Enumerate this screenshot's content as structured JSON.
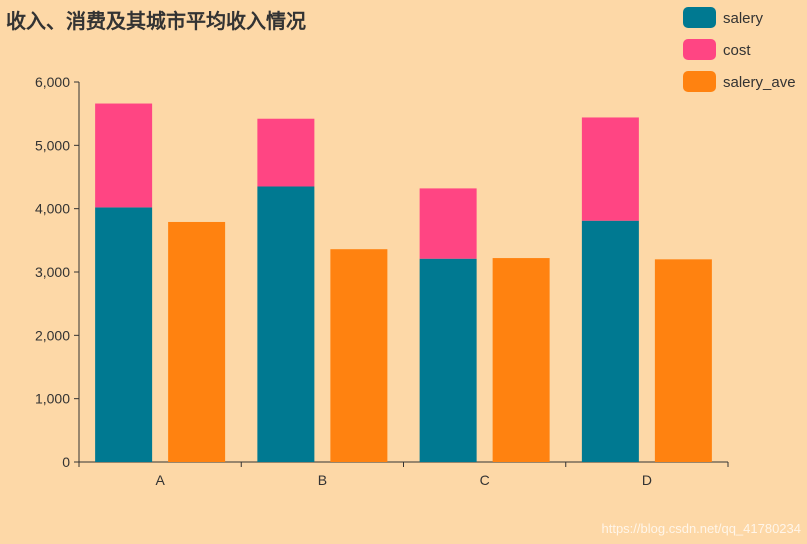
{
  "chart_data": {
    "type": "bar",
    "stacked_groups": true,
    "title": "收入、消费及其城市平均收入情况",
    "categories": [
      "A",
      "B",
      "C",
      "D"
    ],
    "ylim": [
      0,
      6000
    ],
    "yticks": [
      0,
      1000,
      2000,
      3000,
      4000,
      5000,
      6000
    ],
    "ytick_labels": [
      "0",
      "1,000",
      "2,000",
      "3,000",
      "4,000",
      "5,000",
      "6,000"
    ],
    "grid": false,
    "legend_position": "top-right",
    "series": [
      {
        "name": "salery",
        "stack": "income",
        "color": "#007991",
        "values": [
          4020,
          4350,
          3210,
          3810
        ]
      },
      {
        "name": "cost",
        "stack": "income",
        "color": "#FF4583",
        "values": [
          1640,
          1070,
          1110,
          1630
        ]
      },
      {
        "name": "salery_ave",
        "stack": "ave",
        "color": "#FF8210",
        "values": [
          3790,
          3360,
          3220,
          3200
        ]
      }
    ]
  },
  "watermark": "https://blog.csdn.net/qq_41780234"
}
